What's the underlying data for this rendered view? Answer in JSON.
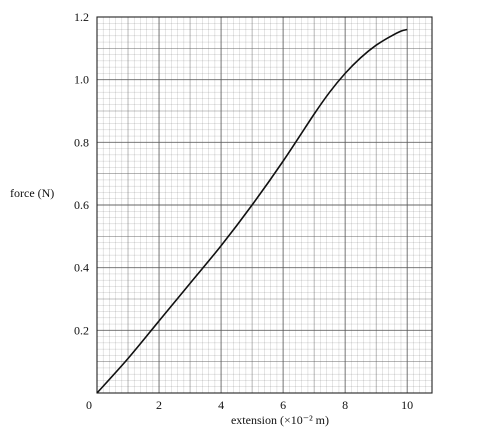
{
  "chart_data": {
    "type": "line",
    "xlabel": "extension (×10⁻² m)",
    "ylabel": "force (N)",
    "xlim": [
      0,
      10.8
    ],
    "ylim": [
      0,
      1.2
    ],
    "x_ticks": [
      "0",
      "2",
      "4",
      "6",
      "8",
      "10"
    ],
    "y_ticks": [
      "0.2",
      "0.4",
      "0.6",
      "0.8",
      "1.0",
      "1.2"
    ],
    "grid": true,
    "series": [
      {
        "x": [
          0,
          1,
          2,
          3,
          4,
          5,
          6,
          7,
          7.5,
          8,
          8.5,
          9,
          9.5,
          9.8,
          10
        ],
        "values": [
          0,
          0.11,
          0.23,
          0.35,
          0.47,
          0.6,
          0.74,
          0.89,
          0.96,
          1.02,
          1.07,
          1.11,
          1.14,
          1.155,
          1.16
        ]
      }
    ]
  }
}
